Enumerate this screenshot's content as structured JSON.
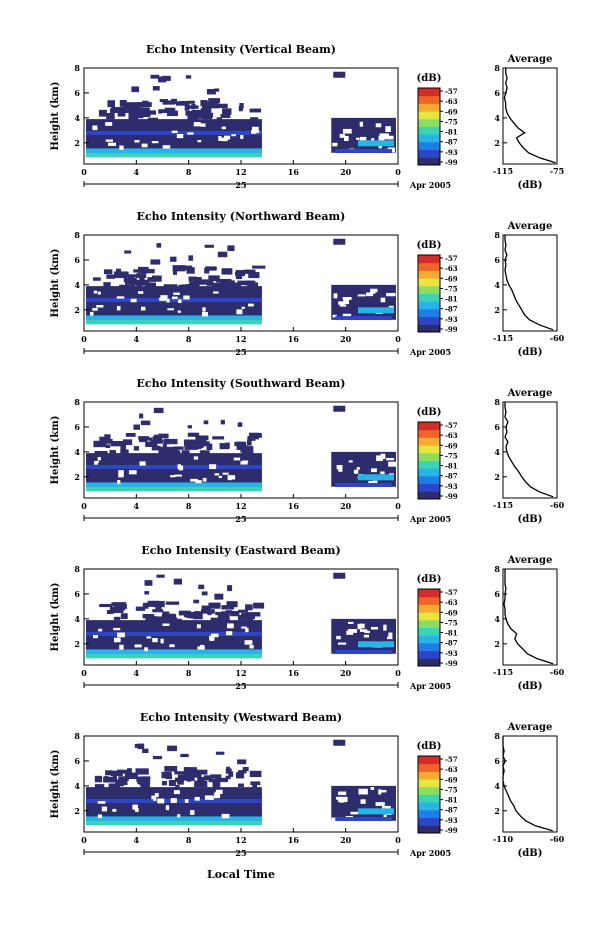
{
  "figure": {
    "footer_xlabel": "Local Time",
    "colors": {
      "background": "#ffffff",
      "echo_fill": "#2d2d6e",
      "axis": "#000000"
    }
  },
  "colorbar": {
    "label": "(dB)",
    "ticks": [
      "-57",
      "-63",
      "-69",
      "-75",
      "-81",
      "-87",
      "-93",
      "-99"
    ],
    "colors": [
      "#2d2d6e",
      "#2f45c8",
      "#1f7de6",
      "#28b4e6",
      "#3cd2b4",
      "#8cdc64",
      "#e6e63c",
      "#f5aa32",
      "#f06428",
      "#d22d28"
    ]
  },
  "chart_data": [
    {
      "type": "heatmap",
      "title": "Echo Intensity (Vertical Beam)",
      "ylabel": "Height (km)",
      "x_ticks": [
        "0",
        "4",
        "8",
        "12",
        "16",
        "20",
        "0"
      ],
      "date_label": "25",
      "month_label": "Apr 2005",
      "ylim": [
        0.3,
        8
      ],
      "y_ticks": [
        "8",
        "6",
        "4",
        "2"
      ],
      "data_gap_hours": [
        13.6,
        18.9
      ],
      "average_profile": {
        "title": "Average",
        "xlabel": "(dB)",
        "xlim": [
          -115,
          -75
        ],
        "x_ticks": [
          "-115",
          "-75"
        ],
        "height_km": [
          0.4,
          0.8,
          1.2,
          1.6,
          2.0,
          2.4,
          2.8,
          3.2,
          3.6,
          4.0,
          4.4,
          4.8,
          5.2,
          5.6,
          6.0,
          6.4,
          6.8,
          7.2,
          7.6,
          8.0
        ],
        "db": [
          -76,
          -88,
          -96,
          -100,
          -103,
          -105,
          -99,
          -104,
          -107,
          -110,
          -112,
          -113,
          -113,
          -114,
          -113,
          -112,
          -113,
          -112,
          -113,
          -113
        ]
      }
    },
    {
      "type": "heatmap",
      "title": "Echo Intensity (Northward Beam)",
      "ylabel": "Height (km)",
      "x_ticks": [
        "0",
        "4",
        "8",
        "12",
        "16",
        "20",
        "0"
      ],
      "date_label": "25",
      "month_label": "Apr 2005",
      "ylim": [
        0.3,
        8
      ],
      "y_ticks": [
        "8",
        "6",
        "4",
        "2"
      ],
      "data_gap_hours": [
        13.6,
        18.9
      ],
      "average_profile": {
        "title": "Average",
        "xlabel": "(dB)",
        "xlim": [
          -115,
          -60
        ],
        "x_ticks": [
          "-115",
          "-60"
        ],
        "height_km": [
          0.4,
          0.8,
          1.2,
          1.6,
          2.0,
          2.4,
          2.8,
          3.2,
          3.6,
          4.0,
          4.4,
          4.8,
          5.2,
          5.6,
          6.0,
          6.4,
          6.8,
          7.2,
          7.6,
          8.0
        ],
        "db": [
          -64,
          -78,
          -88,
          -93,
          -96,
          -99,
          -102,
          -104,
          -106,
          -109,
          -111,
          -112,
          -113,
          -112,
          -113,
          -111,
          -113,
          -112,
          -113,
          -113
        ]
      }
    },
    {
      "type": "heatmap",
      "title": "Echo Intensity (Southward Beam)",
      "ylabel": "Height (km)",
      "x_ticks": [
        "0",
        "4",
        "8",
        "12",
        "16",
        "20",
        "0"
      ],
      "date_label": "25",
      "month_label": "Apr 2005",
      "ylim": [
        0.3,
        8
      ],
      "y_ticks": [
        "8",
        "6",
        "4",
        "2"
      ],
      "data_gap_hours": [
        13.6,
        18.9
      ],
      "average_profile": {
        "title": "Average",
        "xlabel": "(dB)",
        "xlim": [
          -115,
          -60
        ],
        "x_ticks": [
          "-115",
          "-60"
        ],
        "height_km": [
          0.4,
          0.8,
          1.2,
          1.6,
          2.0,
          2.4,
          2.8,
          3.2,
          3.6,
          4.0,
          4.4,
          4.8,
          5.2,
          5.6,
          6.0,
          6.4,
          6.8,
          7.2,
          7.6,
          8.0
        ],
        "db": [
          -64,
          -78,
          -87,
          -92,
          -96,
          -99,
          -103,
          -106,
          -109,
          -111,
          -112,
          -110,
          -113,
          -111,
          -112,
          -110,
          -113,
          -112,
          -113,
          -113
        ]
      }
    },
    {
      "type": "heatmap",
      "title": "Echo Intensity (Eastward Beam)",
      "ylabel": "Height (km)",
      "x_ticks": [
        "0",
        "4",
        "8",
        "12",
        "16",
        "20",
        "0"
      ],
      "date_label": "25",
      "month_label": "Apr 2005",
      "ylim": [
        0.3,
        8
      ],
      "y_ticks": [
        "8",
        "6",
        "4",
        "2"
      ],
      "data_gap_hours": [
        13.6,
        18.9
      ],
      "average_profile": {
        "title": "Average",
        "xlabel": "(dB)",
        "xlim": [
          -115,
          -60
        ],
        "x_ticks": [
          "-115",
          "-60"
        ],
        "height_km": [
          0.4,
          0.8,
          1.2,
          1.6,
          2.0,
          2.4,
          2.8,
          3.2,
          3.6,
          4.0,
          4.4,
          4.8,
          5.2,
          5.6,
          6.0,
          6.4,
          6.8,
          7.2,
          7.6,
          8.0
        ],
        "db": [
          -64,
          -80,
          -90,
          -95,
          -100,
          -103,
          -101,
          -107,
          -110,
          -112,
          -113,
          -113,
          -114,
          -113,
          -113,
          -112,
          -113,
          -113,
          -113,
          -113
        ]
      }
    },
    {
      "type": "heatmap",
      "title": "Echo Intensity (Westward Beam)",
      "ylabel": "Height (km)",
      "x_ticks": [
        "0",
        "4",
        "8",
        "12",
        "16",
        "20",
        "0"
      ],
      "date_label": "25",
      "month_label": "Apr 2005",
      "ylim": [
        0.3,
        8
      ],
      "y_ticks": [
        "8",
        "6",
        "4",
        "2"
      ],
      "data_gap_hours": [
        13.6,
        18.9
      ],
      "average_profile": {
        "title": "Average",
        "xlabel": "(dB)",
        "xlim": [
          -110,
          -60
        ],
        "x_ticks": [
          "-110",
          "-60"
        ],
        "height_km": [
          0.4,
          0.8,
          1.2,
          1.6,
          2.0,
          2.4,
          2.8,
          3.2,
          3.6,
          4.0,
          4.4,
          4.8,
          5.2,
          5.6,
          6.0,
          6.4,
          6.8,
          7.2,
          7.6,
          8.0
        ],
        "db": [
          -64,
          -80,
          -89,
          -94,
          -98,
          -100,
          -103,
          -105,
          -107,
          -109,
          -110,
          -110,
          -109,
          -110,
          -108,
          -110,
          -109,
          -110,
          -110,
          -110
        ]
      }
    }
  ]
}
